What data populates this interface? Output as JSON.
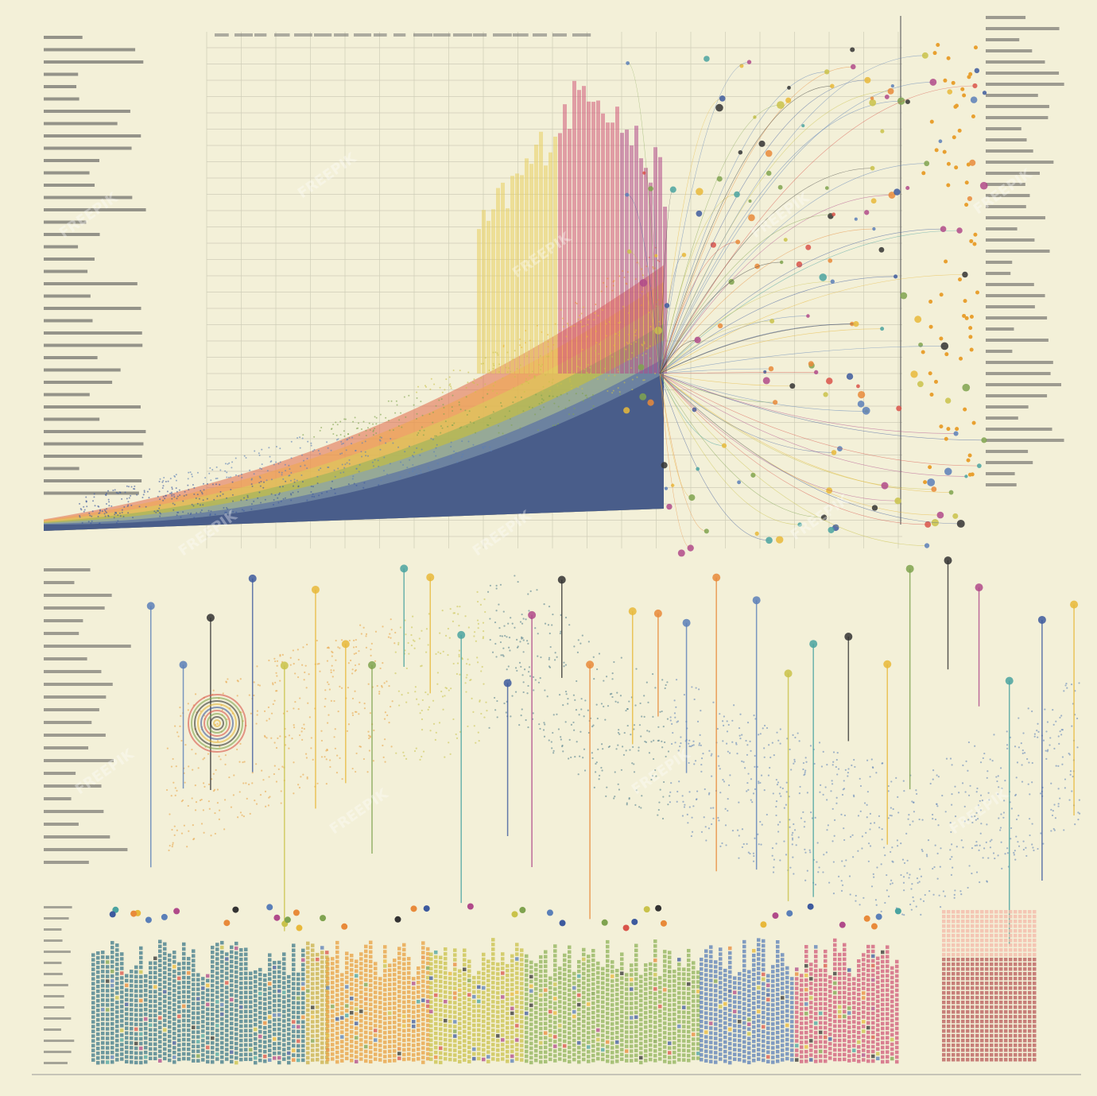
{
  "watermark": "FREEPIK"
}
